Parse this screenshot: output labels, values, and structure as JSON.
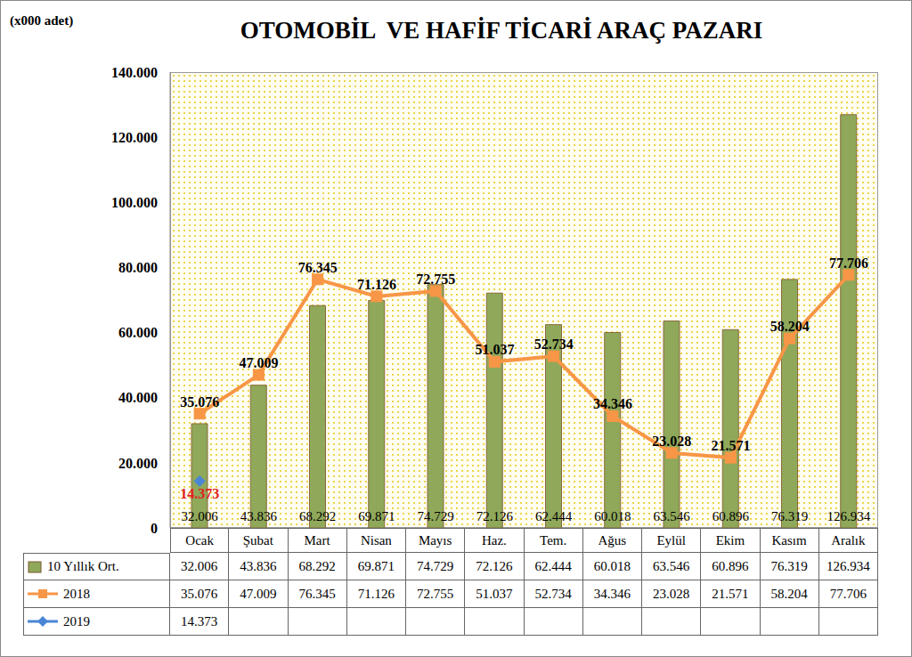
{
  "chart_data": {
    "type": "bar",
    "title": "OTOMOBİL  VE HAFİF TİCARİ ARAÇ PAZARI",
    "y_label": "(x000 adet)",
    "categories": [
      "Ocak",
      "Şubat",
      "Mart",
      "Nisan",
      "Mayıs",
      "Haz.",
      "Tem.",
      "Ağus",
      "Eylül",
      "Ekim",
      "Kasım",
      "Aralık"
    ],
    "series": [
      {
        "name": "10 Yıllık Ort.",
        "type": "bar",
        "color": "#8fa85a",
        "values": [
          32006,
          43836,
          68292,
          69871,
          74729,
          72126,
          62444,
          60018,
          63546,
          60896,
          76319,
          126934
        ],
        "value_labels": [
          "32.006",
          "43.836",
          "68.292",
          "69.871",
          "74.729",
          "72.126",
          "62.444",
          "60.018",
          "63.546",
          "60.896",
          "76.319",
          "126.934"
        ]
      },
      {
        "name": "2018",
        "type": "line",
        "color": "#f79646",
        "marker": "square",
        "values": [
          35076,
          47009,
          76345,
          71126,
          72755,
          51037,
          52734,
          34346,
          23028,
          21571,
          58204,
          77706
        ],
        "value_labels": [
          "35.076",
          "47.009",
          "76.345",
          "71.126",
          "72.755",
          "51.037",
          "52.734",
          "34.346",
          "23.028",
          "21.571",
          "58.204",
          "77.706"
        ]
      },
      {
        "name": "2019",
        "type": "line",
        "color": "#4a86d6",
        "marker": "diamond",
        "values": [
          14373,
          null,
          null,
          null,
          null,
          null,
          null,
          null,
          null,
          null,
          null,
          null
        ],
        "value_labels": [
          "14.373",
          null,
          null,
          null,
          null,
          null,
          null,
          null,
          null,
          null,
          null,
          null
        ]
      }
    ],
    "ylim": [
      0,
      140000
    ],
    "yticks": [
      0,
      {
        "value": 20000,
        "label": "20.000"
      },
      {
        "value": 40000,
        "label": "40.000"
      },
      {
        "value": 60000,
        "label": "60.000"
      },
      {
        "value": 80000,
        "label": "80.000"
      },
      {
        "value": 100000,
        "label": "100.000"
      },
      {
        "value": 120000,
        "label": "120.000"
      },
      {
        "value": 140000,
        "label": "140.000"
      }
    ],
    "grid": false,
    "data_labels": true
  }
}
